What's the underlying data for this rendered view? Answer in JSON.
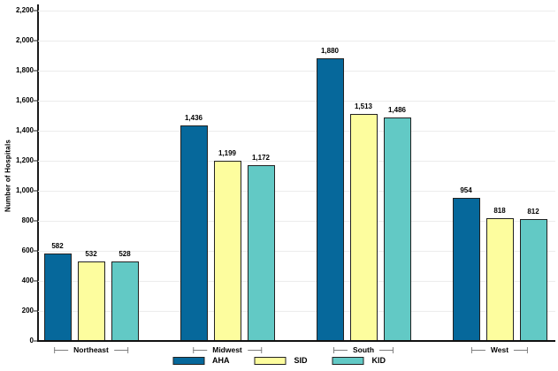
{
  "chart_data": {
    "type": "bar",
    "title": "",
    "xlabel": "",
    "ylabel": "Number of Hospitals",
    "ylim": [
      0,
      2200
    ],
    "ytick_step": 200,
    "ytick_labels": [
      "0",
      "200",
      "400",
      "600",
      "800",
      "1,000",
      "1,200",
      "1,400",
      "1,600",
      "1,800",
      "2,000",
      "2,200"
    ],
    "grid": "horizontal-only",
    "legend_position": "bottom-center",
    "categories": [
      "Northeast",
      "Midwest",
      "South",
      "West"
    ],
    "series": [
      {
        "name": "AHA",
        "color": "#06689b",
        "values": [
          582,
          1436,
          1880,
          954
        ],
        "labels": [
          "582",
          "1,436",
          "1,880",
          "954"
        ]
      },
      {
        "name": "SID",
        "color": "#fdfd9e",
        "values": [
          532,
          1199,
          1513,
          818
        ],
        "labels": [
          "532",
          "1,199",
          "1,513",
          "818"
        ]
      },
      {
        "name": "KID",
        "color": "#62c9c5",
        "values": [
          528,
          1172,
          1486,
          812
        ],
        "labels": [
          "528",
          "1,172",
          "1,486",
          "812"
        ]
      }
    ]
  },
  "colors": {
    "axis": "#1a1a1a",
    "gridline": "#ececec",
    "bar_border": "#222222",
    "bracket": "#808080",
    "background": "#ffffff"
  }
}
